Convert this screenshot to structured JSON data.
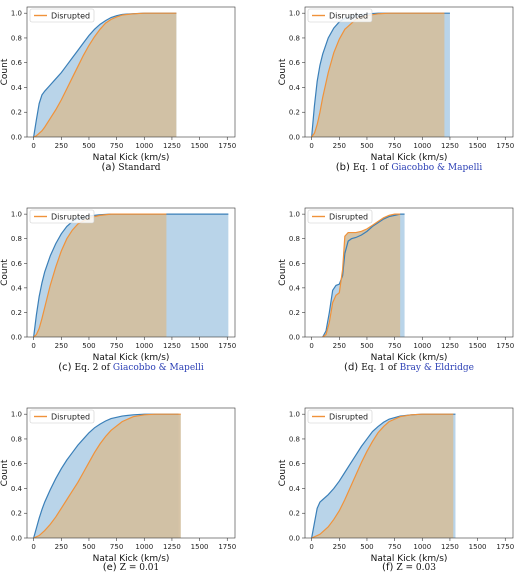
{
  "colors": {
    "all_line": "#3a7fb8",
    "all_fill": "#a8c9e4",
    "disrupted_line": "#f0923a",
    "disrupted_fill": "#d2bf9e"
  },
  "chart_data": [
    {
      "type": "area",
      "caption": {
        "label": "(a)",
        "text": "Standard",
        "link": ""
      },
      "xlabel": "Natal Kick (km/s)",
      "ylabel": "Count",
      "xlim": [
        -60,
        1820
      ],
      "ylim": [
        0,
        1.05
      ],
      "xticks": [
        0,
        250,
        500,
        750,
        1000,
        1250,
        1500,
        1750
      ],
      "yticks": [
        0.0,
        0.2,
        0.4,
        0.6,
        0.8,
        1.0
      ],
      "legend": "top-left",
      "series": [
        {
          "role": "all",
          "x": [
            0,
            25,
            50,
            75,
            100,
            150,
            200,
            250,
            300,
            350,
            400,
            450,
            500,
            550,
            600,
            650,
            700,
            750,
            800,
            900,
            1000,
            1100,
            1200,
            1290
          ],
          "values": [
            0.0,
            0.14,
            0.27,
            0.34,
            0.37,
            0.42,
            0.47,
            0.52,
            0.58,
            0.64,
            0.7,
            0.76,
            0.82,
            0.87,
            0.91,
            0.94,
            0.965,
            0.98,
            0.99,
            0.996,
            1.0,
            1.0,
            1.0,
            1.0
          ]
        },
        {
          "name": "Disrupted",
          "role": "disrupted",
          "x": [
            0,
            25,
            50,
            75,
            100,
            150,
            200,
            250,
            300,
            350,
            400,
            450,
            500,
            550,
            600,
            650,
            700,
            750,
            800,
            900,
            1000,
            1100,
            1200,
            1290
          ],
          "values": [
            0.0,
            0.01,
            0.03,
            0.05,
            0.08,
            0.15,
            0.22,
            0.3,
            0.39,
            0.48,
            0.57,
            0.66,
            0.74,
            0.81,
            0.87,
            0.92,
            0.95,
            0.97,
            0.985,
            0.995,
            1.0,
            1.0,
            1.0,
            1.0
          ]
        }
      ]
    },
    {
      "type": "area",
      "caption": {
        "label": "(b)",
        "text": "Eq. 1 of",
        "link": "Giacobbo & Mapelli"
      },
      "xlabel": "Natal Kick (km/s)",
      "ylabel": "Count",
      "xlim": [
        -60,
        1820
      ],
      "ylim": [
        0,
        1.05
      ],
      "xticks": [
        0,
        250,
        500,
        750,
        1000,
        1250,
        1500,
        1750
      ],
      "yticks": [
        0.0,
        0.2,
        0.4,
        0.6,
        0.8,
        1.0
      ],
      "legend": "top-left",
      "series": [
        {
          "role": "all",
          "x": [
            0,
            25,
            50,
            75,
            100,
            150,
            200,
            250,
            300,
            400,
            500,
            600,
            700,
            800,
            1000,
            1250
          ],
          "values": [
            0.0,
            0.25,
            0.45,
            0.58,
            0.67,
            0.8,
            0.88,
            0.93,
            0.96,
            0.985,
            0.995,
            1.0,
            1.0,
            1.0,
            1.0,
            1.0
          ]
        },
        {
          "name": "Disrupted",
          "role": "disrupted",
          "x": [
            0,
            25,
            50,
            75,
            100,
            150,
            200,
            250,
            300,
            400,
            500,
            600,
            700,
            800,
            1000,
            1200
          ],
          "values": [
            0.0,
            0.03,
            0.1,
            0.2,
            0.32,
            0.52,
            0.68,
            0.79,
            0.87,
            0.95,
            0.98,
            0.995,
            1.0,
            1.0,
            1.0,
            1.0
          ]
        }
      ]
    },
    {
      "type": "area",
      "caption": {
        "label": "(c)",
        "text": "Eq. 2 of",
        "link": "Giacobbo & Mapelli"
      },
      "xlabel": "Natal Kick (km/s)",
      "ylabel": "Count",
      "xlim": [
        -60,
        1820
      ],
      "ylim": [
        0,
        1.05
      ],
      "xticks": [
        0,
        250,
        500,
        750,
        1000,
        1250,
        1500,
        1750
      ],
      "yticks": [
        0.0,
        0.2,
        0.4,
        0.6,
        0.8,
        1.0
      ],
      "legend": "top-left",
      "series": [
        {
          "role": "all",
          "x": [
            0,
            25,
            50,
            75,
            100,
            150,
            200,
            250,
            300,
            350,
            400,
            500,
            600,
            700,
            800,
            1000,
            1200,
            1500,
            1760
          ],
          "values": [
            0.0,
            0.18,
            0.33,
            0.44,
            0.53,
            0.66,
            0.76,
            0.84,
            0.9,
            0.94,
            0.965,
            0.985,
            0.995,
            1.0,
            1.0,
            1.0,
            1.0,
            1.0,
            1.0
          ]
        },
        {
          "name": "Disrupted",
          "role": "disrupted",
          "x": [
            0,
            25,
            50,
            75,
            100,
            150,
            200,
            250,
            300,
            350,
            400,
            500,
            600,
            700,
            800,
            1000,
            1200
          ],
          "values": [
            0.0,
            0.02,
            0.07,
            0.15,
            0.24,
            0.42,
            0.57,
            0.7,
            0.8,
            0.87,
            0.92,
            0.97,
            0.99,
            1.0,
            1.0,
            1.0,
            1.0
          ]
        }
      ]
    },
    {
      "type": "area",
      "caption": {
        "label": "(d)",
        "text": "Eq. 1 of",
        "link": "Bray & Eldridge"
      },
      "xlabel": "Natal Kick (km/s)",
      "ylabel": "Count",
      "xlim": [
        -60,
        1820
      ],
      "ylim": [
        0,
        1.05
      ],
      "xticks": [
        0,
        250,
        500,
        750,
        1000,
        1250,
        1500,
        1750
      ],
      "yticks": [
        0.0,
        0.2,
        0.4,
        0.6,
        0.8,
        1.0
      ],
      "legend": "top-left",
      "series": [
        {
          "role": "all",
          "x": [
            100,
            130,
            160,
            190,
            220,
            250,
            280,
            300,
            330,
            360,
            400,
            450,
            500,
            550,
            600,
            650,
            700,
            750,
            800,
            840
          ],
          "values": [
            0.0,
            0.05,
            0.2,
            0.38,
            0.42,
            0.43,
            0.5,
            0.68,
            0.78,
            0.8,
            0.81,
            0.83,
            0.86,
            0.9,
            0.93,
            0.96,
            0.98,
            0.99,
            1.0,
            1.0
          ]
        },
        {
          "name": "Disrupted",
          "role": "disrupted",
          "x": [
            100,
            130,
            160,
            190,
            220,
            250,
            280,
            300,
            330,
            360,
            400,
            450,
            500,
            550,
            600,
            650,
            700,
            750,
            800
          ],
          "values": [
            0.0,
            0.02,
            0.12,
            0.28,
            0.34,
            0.36,
            0.55,
            0.82,
            0.85,
            0.85,
            0.85,
            0.86,
            0.88,
            0.91,
            0.94,
            0.97,
            0.99,
            1.0,
            1.0
          ]
        }
      ]
    },
    {
      "type": "area",
      "caption": {
        "label": "(e)",
        "text": "Z = 0.01",
        "link": ""
      },
      "xlabel": "Natal Kick (km/s)",
      "ylabel": "Count",
      "xlim": [
        -60,
        1820
      ],
      "ylim": [
        0,
        1.05
      ],
      "xticks": [
        0,
        250,
        500,
        750,
        1000,
        1250,
        1500,
        1750
      ],
      "yticks": [
        0.0,
        0.2,
        0.4,
        0.6,
        0.8,
        1.0
      ],
      "legend": "top-left",
      "series": [
        {
          "role": "all",
          "x": [
            0,
            25,
            50,
            75,
            100,
            150,
            200,
            250,
            300,
            350,
            400,
            450,
            500,
            550,
            600,
            650,
            700,
            800,
            900,
            1000,
            1100,
            1200,
            1310
          ],
          "values": [
            0.0,
            0.08,
            0.16,
            0.23,
            0.29,
            0.39,
            0.48,
            0.56,
            0.63,
            0.69,
            0.75,
            0.8,
            0.85,
            0.89,
            0.92,
            0.945,
            0.965,
            0.985,
            0.995,
            1.0,
            1.0,
            1.0,
            1.0
          ]
        },
        {
          "name": "Disrupted",
          "role": "disrupted",
          "x": [
            0,
            25,
            50,
            75,
            100,
            150,
            200,
            250,
            300,
            350,
            400,
            450,
            500,
            550,
            600,
            650,
            700,
            800,
            900,
            1000,
            1100,
            1200,
            1330
          ],
          "values": [
            0.0,
            0.01,
            0.02,
            0.04,
            0.06,
            0.11,
            0.17,
            0.24,
            0.31,
            0.38,
            0.45,
            0.53,
            0.61,
            0.69,
            0.76,
            0.82,
            0.87,
            0.94,
            0.98,
            0.995,
            1.0,
            1.0,
            1.0
          ]
        }
      ]
    },
    {
      "type": "area",
      "caption": {
        "label": "(f)",
        "text": "Z = 0.03",
        "link": ""
      },
      "xlabel": "Natal Kick (km/s)",
      "ylabel": "Count",
      "xlim": [
        -60,
        1820
      ],
      "ylim": [
        0,
        1.05
      ],
      "xticks": [
        0,
        250,
        500,
        750,
        1000,
        1250,
        1500,
        1750
      ],
      "yticks": [
        0.0,
        0.2,
        0.4,
        0.6,
        0.8,
        1.0
      ],
      "legend": "top-left",
      "series": [
        {
          "role": "all",
          "x": [
            0,
            25,
            50,
            75,
            100,
            150,
            200,
            250,
            300,
            350,
            400,
            450,
            500,
            550,
            600,
            650,
            700,
            800,
            900,
            1000,
            1100,
            1200,
            1300
          ],
          "values": [
            0.0,
            0.12,
            0.24,
            0.29,
            0.31,
            0.35,
            0.4,
            0.46,
            0.53,
            0.6,
            0.67,
            0.74,
            0.8,
            0.86,
            0.9,
            0.935,
            0.96,
            0.985,
            0.995,
            1.0,
            1.0,
            1.0,
            1.0
          ]
        },
        {
          "name": "Disrupted",
          "role": "disrupted",
          "x": [
            0,
            25,
            50,
            75,
            100,
            150,
            200,
            250,
            300,
            350,
            400,
            450,
            500,
            550,
            600,
            650,
            700,
            800,
            900,
            1000,
            1100,
            1200,
            1280
          ],
          "values": [
            0.0,
            0.01,
            0.02,
            0.03,
            0.05,
            0.09,
            0.15,
            0.22,
            0.31,
            0.41,
            0.51,
            0.61,
            0.7,
            0.78,
            0.85,
            0.9,
            0.94,
            0.98,
            0.995,
            1.0,
            1.0,
            1.0,
            1.0
          ]
        }
      ]
    }
  ]
}
